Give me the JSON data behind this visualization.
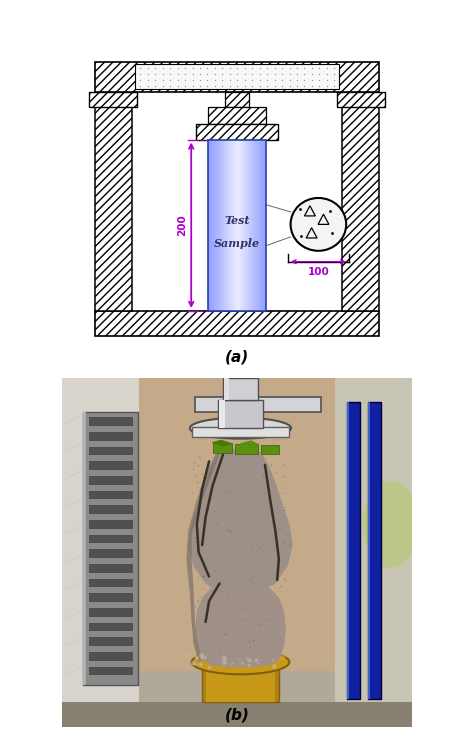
{
  "fig_width": 4.74,
  "fig_height": 7.34,
  "dpi": 100,
  "bg_color": "#ffffff",
  "label_a": "(a)",
  "label_b": "(b)",
  "label_fontsize": 11,
  "dim_color": "#aa00cc",
  "dim_200": "200",
  "dim_100": "100",
  "sample_text_1": "Test",
  "sample_text_2": "Sample",
  "hatch_pattern": "////",
  "photo_bg": "#b8a898",
  "photo_wall_left": "#d8d0c8",
  "photo_wall_right": "#ccc8b8",
  "photo_floor": "#c0b8a8",
  "concrete_color": "#a0988c",
  "brass_color": "#c8a020",
  "steel_color": "#c0c0c8",
  "panel_gray": "#787878",
  "blue_bar": "#1020a0"
}
